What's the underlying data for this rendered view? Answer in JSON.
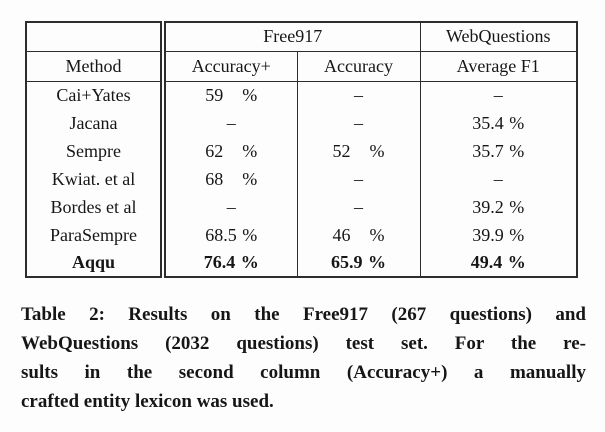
{
  "table": {
    "group_headers": {
      "free917": "Free917",
      "webquestions": "WebQuestions"
    },
    "column_headers": {
      "method": "Method",
      "accuracy_plus": "Accuracy+",
      "accuracy": "Accuracy",
      "average_f1": "Average F1"
    },
    "rows": [
      {
        "method": "Cai+Yates",
        "accuracy_plus": {
          "num": "59",
          "unit": "%"
        },
        "accuracy": {
          "text": "–"
        },
        "average_f1": {
          "text": "–"
        }
      },
      {
        "method": "Jacana",
        "accuracy_plus": {
          "text": "–"
        },
        "accuracy": {
          "text": "–"
        },
        "average_f1": {
          "num": "35.4",
          "unit": "%"
        }
      },
      {
        "method": "Sempre",
        "accuracy_plus": {
          "num": "62",
          "unit": "%"
        },
        "accuracy": {
          "num": "52",
          "unit": "%"
        },
        "average_f1": {
          "num": "35.7",
          "unit": "%"
        }
      },
      {
        "method": "Kwiat. et al",
        "accuracy_plus": {
          "num": "68",
          "unit": "%"
        },
        "accuracy": {
          "text": "–"
        },
        "average_f1": {
          "text": "–"
        }
      },
      {
        "method": "Bordes et al",
        "accuracy_plus": {
          "text": "–"
        },
        "accuracy": {
          "text": "–"
        },
        "average_f1": {
          "num": "39.2",
          "unit": "%"
        }
      },
      {
        "method": "ParaSempre",
        "accuracy_plus": {
          "num": "68.5",
          "unit": "%"
        },
        "accuracy": {
          "num": "46",
          "unit": "%"
        },
        "average_f1": {
          "num": "39.9",
          "unit": "%"
        }
      },
      {
        "method": "Aqqu",
        "bold": true,
        "accuracy_plus": {
          "num": "76.4",
          "unit": "%"
        },
        "accuracy": {
          "num": "65.9",
          "unit": "%"
        },
        "average_f1": {
          "num": "49.4",
          "unit": "%"
        }
      }
    ]
  },
  "caption": {
    "lines": [
      "Table 2: Results on the Free917 (267 questions) and",
      "WebQuestions (2032 questions) test set. For the re-",
      "sults in the second column (Accuracy+) a manually",
      "crafted entity lexicon was used."
    ]
  }
}
